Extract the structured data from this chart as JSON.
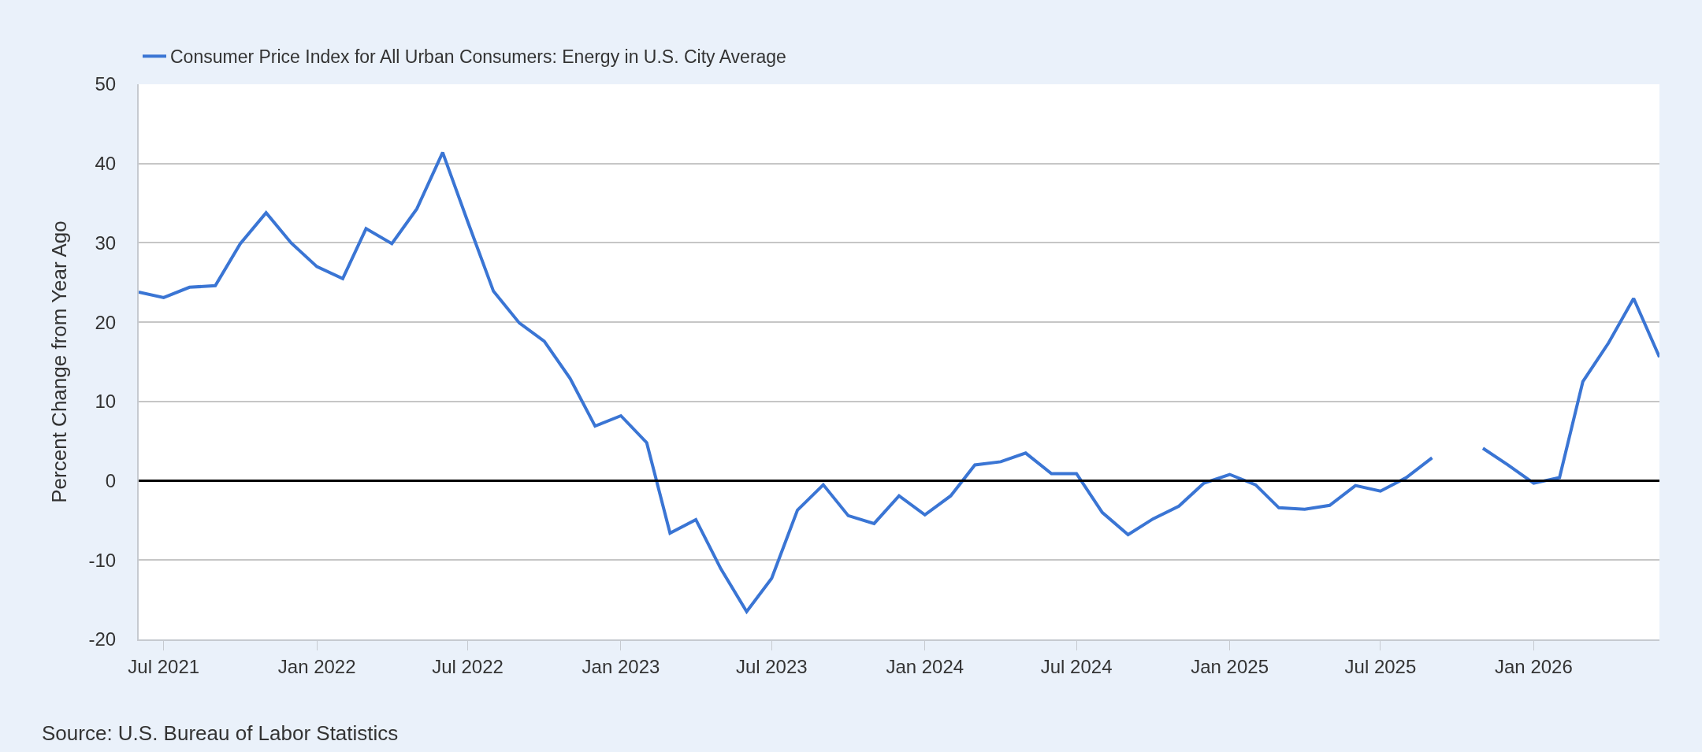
{
  "chart_data": {
    "type": "line",
    "ylabel": "Percent Change from Year Ago",
    "annotations": [
      "Source: U.S. Bureau of Labor Statistics"
    ],
    "x": [
      "2021-06",
      "2021-07",
      "2021-08",
      "2021-09",
      "2021-10",
      "2021-11",
      "2021-12",
      "2022-01",
      "2022-02",
      "2022-03",
      "2022-04",
      "2022-05",
      "2022-06",
      "2022-07",
      "2022-08",
      "2022-09",
      "2022-10",
      "2022-11",
      "2022-12",
      "2023-01",
      "2023-02",
      "2023-03",
      "2023-04",
      "2023-05",
      "2023-06",
      "2023-07",
      "2023-08",
      "2023-09",
      "2023-10",
      "2023-11",
      "2023-12",
      "2024-01",
      "2024-02",
      "2024-03",
      "2024-04",
      "2024-05",
      "2024-06",
      "2024-07",
      "2024-08",
      "2024-09",
      "2024-10",
      "2024-11",
      "2024-12",
      "2025-01",
      "2025-02",
      "2025-03",
      "2025-04",
      "2025-05",
      "2025-06",
      "2025-07",
      "2025-08",
      "2025-09",
      "2025-10",
      "2025-11",
      "2025-12",
      "2026-01",
      "2026-02",
      "2026-03",
      "2026-04",
      "2026-05",
      "2026-06"
    ],
    "series": [
      {
        "name": "Consumer Price Index for All Urban Consumers: Energy in U.S. City Average",
        "color": "#3a75d4",
        "values": [
          23.8,
          23.1,
          24.4,
          24.6,
          29.9,
          33.8,
          30.0,
          27.0,
          25.5,
          31.8,
          29.9,
          34.3,
          41.4,
          32.7,
          23.9,
          19.9,
          17.6,
          12.9,
          6.9,
          8.2,
          4.8,
          -6.6,
          -4.9,
          -11.1,
          -16.5,
          -12.3,
          -3.7,
          -0.5,
          -4.4,
          -5.4,
          -1.9,
          -4.3,
          -1.9,
          2.0,
          2.4,
          3.5,
          0.9,
          0.9,
          -4.0,
          -6.8,
          -4.8,
          -3.2,
          -0.3,
          0.8,
          -0.5,
          -3.4,
          -3.6,
          -3.1,
          -0.6,
          -1.3,
          0.4,
          2.9,
          null,
          4.1,
          2.0,
          -0.3,
          0.4,
          12.5,
          17.4,
          23.0,
          15.6
        ]
      }
    ],
    "xlim": [
      "2021-06",
      "2026-06"
    ],
    "xticks": [
      {
        "value": "2021-07",
        "label": "Jul 2021"
      },
      {
        "value": "2022-01",
        "label": "Jan 2022"
      },
      {
        "value": "2022-07",
        "label": "Jul 2022"
      },
      {
        "value": "2023-01",
        "label": "Jan 2023"
      },
      {
        "value": "2023-07",
        "label": "Jul 2023"
      },
      {
        "value": "2024-01",
        "label": "Jan 2024"
      },
      {
        "value": "2024-07",
        "label": "Jul 2024"
      },
      {
        "value": "2025-01",
        "label": "Jan 2025"
      },
      {
        "value": "2025-07",
        "label": "Jul 2025"
      },
      {
        "value": "2026-01",
        "label": "Jan 2026"
      }
    ],
    "ylim": [
      -20,
      50
    ],
    "yticks": [
      -20,
      -10,
      0,
      10,
      20,
      30,
      40,
      50
    ],
    "ref_lines": [
      {
        "axis": "y",
        "value": 0,
        "color": "#000000"
      }
    ],
    "grid": "y",
    "legend": "top left",
    "marker": "none",
    "line_style": "solid"
  }
}
